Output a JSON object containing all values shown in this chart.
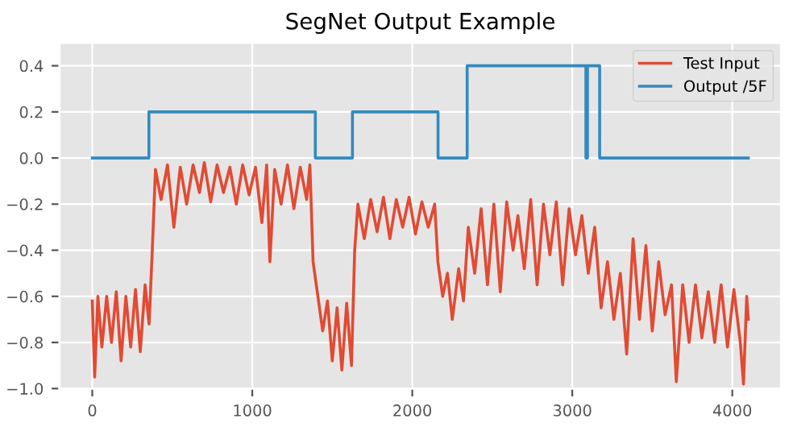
{
  "chart_data": {
    "type": "line",
    "title": "SegNet Output Example",
    "legend": "top right",
    "grid": true,
    "xlim": [
      -205,
      4305
    ],
    "ylim": [
      -1.0,
      0.5
    ],
    "xticks": [
      0,
      1000,
      2000,
      3000,
      4000
    ],
    "yticks": [
      {
        "value": -1.0,
        "label": "−1.0"
      },
      {
        "value": -0.8,
        "label": "−0.8"
      },
      {
        "value": -0.6,
        "label": "−0.6"
      },
      {
        "value": -0.4,
        "label": "−0.4"
      },
      {
        "value": -0.2,
        "label": "−0.2"
      },
      {
        "value": 0.0,
        "label": "0.0"
      },
      {
        "value": 0.2,
        "label": "0.2"
      },
      {
        "value": 0.4,
        "label": "0.4"
      }
    ],
    "series": [
      {
        "name": "Test Input",
        "color": "#e24a33",
        "x": [
          0,
          15,
          35,
          60,
          90,
          120,
          150,
          180,
          210,
          240,
          270,
          300,
          330,
          355,
          375,
          395,
          430,
          470,
          510,
          550,
          590,
          630,
          670,
          700,
          740,
          780,
          820,
          860,
          900,
          940,
          980,
          1020,
          1060,
          1090,
          1110,
          1140,
          1180,
          1220,
          1260,
          1300,
          1340,
          1360,
          1380,
          1410,
          1440,
          1470,
          1500,
          1530,
          1560,
          1590,
          1620,
          1640,
          1660,
          1700,
          1740,
          1780,
          1820,
          1860,
          1900,
          1940,
          1980,
          2020,
          2060,
          2100,
          2140,
          2160,
          2190,
          2220,
          2250,
          2290,
          2320,
          2350,
          2390,
          2430,
          2470,
          2510,
          2550,
          2590,
          2630,
          2660,
          2700,
          2740,
          2780,
          2820,
          2860,
          2900,
          2940,
          2980,
          3020,
          3060,
          3100,
          3140,
          3180,
          3220,
          3260,
          3300,
          3340,
          3380,
          3420,
          3460,
          3500,
          3540,
          3580,
          3620,
          3650,
          3690,
          3730,
          3770,
          3810,
          3850,
          3890,
          3930,
          3970,
          4010,
          4050,
          4070,
          4090,
          4100
        ],
        "values": [
          -0.62,
          -0.95,
          -0.6,
          -0.82,
          -0.6,
          -0.8,
          -0.58,
          -0.88,
          -0.6,
          -0.82,
          -0.57,
          -0.84,
          -0.55,
          -0.72,
          -0.4,
          -0.05,
          -0.18,
          -0.03,
          -0.3,
          -0.04,
          -0.2,
          -0.03,
          -0.15,
          -0.02,
          -0.19,
          -0.03,
          -0.15,
          -0.04,
          -0.2,
          -0.03,
          -0.16,
          -0.04,
          -0.28,
          -0.03,
          -0.45,
          -0.05,
          -0.2,
          -0.03,
          -0.22,
          -0.04,
          -0.18,
          -0.03,
          -0.45,
          -0.6,
          -0.75,
          -0.62,
          -0.88,
          -0.65,
          -0.92,
          -0.63,
          -0.9,
          -0.4,
          -0.2,
          -0.35,
          -0.18,
          -0.32,
          -0.17,
          -0.35,
          -0.18,
          -0.3,
          -0.17,
          -0.33,
          -0.19,
          -0.3,
          -0.2,
          -0.45,
          -0.6,
          -0.5,
          -0.7,
          -0.48,
          -0.62,
          -0.3,
          -0.5,
          -0.22,
          -0.55,
          -0.2,
          -0.58,
          -0.19,
          -0.4,
          -0.25,
          -0.48,
          -0.18,
          -0.55,
          -0.2,
          -0.42,
          -0.19,
          -0.55,
          -0.22,
          -0.42,
          -0.25,
          -0.5,
          -0.3,
          -0.65,
          -0.45,
          -0.7,
          -0.5,
          -0.85,
          -0.35,
          -0.7,
          -0.38,
          -0.75,
          -0.45,
          -0.68,
          -0.55,
          -0.97,
          -0.55,
          -0.8,
          -0.55,
          -0.78,
          -0.58,
          -0.8,
          -0.55,
          -0.82,
          -0.57,
          -0.8,
          -0.98,
          -0.6,
          -0.7
        ]
      },
      {
        "name": "Output /5F",
        "type": "step",
        "color": "#348abd",
        "x": [
          0,
          354,
          1394,
          1626,
          2161,
          2343,
          3085,
          3095,
          3171,
          4100
        ],
        "values": [
          0,
          0.2,
          0,
          0.2,
          0,
          0.4,
          0,
          0.4,
          0,
          0
        ]
      }
    ]
  }
}
